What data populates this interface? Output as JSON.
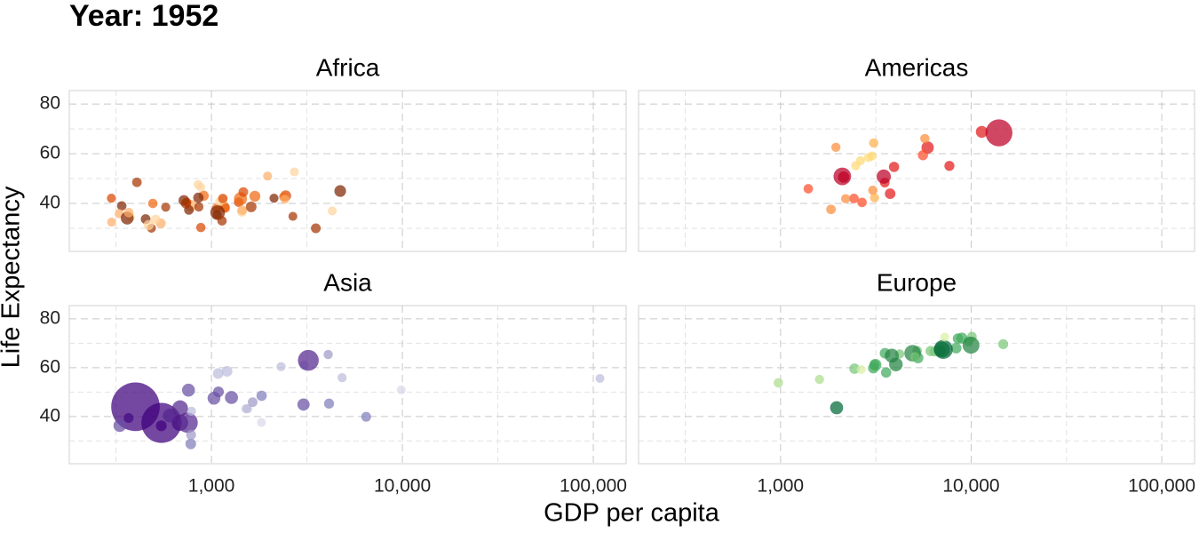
{
  "title": "Year: 1952",
  "x_label": "GDP per capita",
  "y_label": "Life Expectancy",
  "chart_data": [
    {
      "type": "scatter",
      "title": "Africa",
      "log_x": true,
      "grid": true,
      "xlim": [
        180,
        148600
      ],
      "ylim": [
        20.7,
        85.4
      ],
      "xticks": [
        1000,
        10000,
        100000
      ],
      "x_minor_grid": [
        316.2,
        3162,
        31623
      ],
      "yticks": [
        40,
        60,
        80
      ],
      "y_minor_grid": [
        30,
        50,
        70
      ],
      "x": [
        2449,
        3521,
        1063,
        851,
        543,
        339,
        1173,
        1071,
        1179,
        1103,
        781,
        2126,
        1389,
        2670,
        1419,
        376,
        329,
        362,
        4293,
        485,
        911,
        510,
        300,
        854,
        299,
        576,
        2388,
        1443,
        369,
        452,
        743,
        1968,
        1688,
        469,
        2424,
        762,
        1077,
        2719,
        493,
        880,
        1450,
        880,
        1136,
        4725,
        1615,
        1148,
        717,
        859,
        1469,
        735,
        1147,
        407
      ],
      "values": [
        43.1,
        30.0,
        38.2,
        47.6,
        32.0,
        39.0,
        38.5,
        35.5,
        38.1,
        40.7,
        39.1,
        42.1,
        40.5,
        34.8,
        41.9,
        34.5,
        35.9,
        34.1,
        37.0,
        30.0,
        43.1,
        33.6,
        32.5,
        42.3,
        42.1,
        38.5,
        42.7,
        36.7,
        36.3,
        33.7,
        40.5,
        51.0,
        42.9,
        31.3,
        41.7,
        37.4,
        36.3,
        52.7,
        40.0,
        46.5,
        37.3,
        30.3,
        33.0,
        45.0,
        38.6,
        41.4,
        41.2,
        38.6,
        44.6,
        40.0,
        42.0,
        48.5
      ],
      "sizes": [
        9.3,
        4.2,
        1.7,
        0.44,
        4.5,
        2.4,
        5.0,
        1.3,
        2.7,
        0.15,
        14.1,
        0.85,
        2.98,
        0.06,
        22.2,
        0.22,
        1.4,
        20.9,
        0.42,
        0.28,
        5.6,
        2.7,
        0.58,
        6.5,
        0.75,
        0.86,
        1.0,
        4.8,
        2.9,
        3.8,
        1.0,
        0.52,
        9.9,
        6.4,
        0.49,
        3.4,
        33.1,
        0.26,
        2.5,
        0.06,
        2.8,
        2.1,
        2.5,
        14.3,
        8.5,
        0.29,
        8.3,
        1.2,
        3.6,
        5.8,
        2.7,
        3.1
      ],
      "colors": [
        "#d94801",
        "#a63603",
        "#f16913",
        "#fdd49e",
        "#fdae6b",
        "#7f2704",
        "#d94801",
        "#a63603",
        "#f16913",
        "#fdd49e",
        "#fdae6b",
        "#7f2704",
        "#d94801",
        "#a63603",
        "#f16913",
        "#fdd49e",
        "#fdae6b",
        "#7f2704",
        "#fdd49e",
        "#a63603",
        "#f16913",
        "#fdd49e",
        "#fdae6b",
        "#7f2704",
        "#d94801",
        "#a63603",
        "#f16913",
        "#fdd49e",
        "#fdae6b",
        "#7f2704",
        "#d94801",
        "#fdae6b",
        "#f16913",
        "#fdd49e",
        "#fdae6b",
        "#7f2704",
        "#7f2704",
        "#fdd49e",
        "#f16913",
        "#fdd49e",
        "#fdae6b",
        "#d94801",
        "#a63603",
        "#7f2704",
        "#a63603",
        "#fdd49e",
        "#7f2704",
        "#a63603",
        "#d94801",
        "#a63603",
        "#d94801",
        "#a63603"
      ]
    },
    {
      "type": "scatter",
      "title": "Americas",
      "log_x": true,
      "grid": true,
      "xlim": [
        180,
        148600
      ],
      "ylim": [
        20.7,
        85.4
      ],
      "xticks": [
        1000,
        10000,
        100000
      ],
      "x_minor_grid": [
        316.2,
        3162,
        31623
      ],
      "yticks": [
        40,
        60,
        80
      ],
      "y_minor_grid": [
        30,
        50,
        70
      ],
      "x": [
        5911,
        2677,
        2109,
        11367,
        3940,
        2144,
        2627,
        5587,
        1398,
        3522,
        3048,
        2428,
        1840,
        2195,
        2899,
        3478,
        3112,
        2480,
        1952,
        3759,
        3082,
        3023,
        13990,
        5717,
        7690
      ],
      "values": [
        62.5,
        40.4,
        50.9,
        68.8,
        54.7,
        50.6,
        57.2,
        59.4,
        45.9,
        48.4,
        45.3,
        42.0,
        37.6,
        41.9,
        58.5,
        50.8,
        42.3,
        55.2,
        62.6,
        43.9,
        64.3,
        59.1,
        68.4,
        66.1,
        55.1
      ],
      "sizes": [
        17.9,
        2.9,
        56.6,
        14.8,
        6.4,
        12.4,
        0.93,
        6.0,
        2.5,
        3.5,
        2.0,
        3.1,
        3.2,
        1.5,
        1.4,
        30.1,
        1.2,
        0.94,
        1.6,
        8.0,
        2.2,
        0.66,
        157.6,
        2.25,
        5.4
      ],
      "colors": [
        "#e31a1c",
        "#fc4e2a",
        "#bd0026",
        "#e31a1c",
        "#e31a1c",
        "#bd0026",
        "#fed976",
        "#fc4e2a",
        "#fc4e2a",
        "#e31a1c",
        "#fd8d3c",
        "#fc4e2a",
        "#fd8d3c",
        "#fd8d3c",
        "#fed976",
        "#bd0026",
        "#feb24c",
        "#fed976",
        "#fd8d3c",
        "#e31a1c",
        "#feb24c",
        "#fed976",
        "#bd0026",
        "#fd8d3c",
        "#e31a1c"
      ]
    },
    {
      "type": "scatter",
      "title": "Asia",
      "log_x": true,
      "grid": true,
      "xlim": [
        180,
        148600
      ],
      "ylim": [
        20.7,
        85.4
      ],
      "xticks": [
        {
          "value": 1000,
          "label": "1,000"
        },
        {
          "value": 10000,
          "label": "10,000"
        },
        {
          "value": 100000,
          "label": "100,000"
        }
      ],
      "x_minor_grid": [
        316.2,
        3162,
        31623
      ],
      "yticks": [
        40,
        60,
        80
      ],
      "y_minor_grid": [
        30,
        50,
        70
      ],
      "x": [
        779,
        9867,
        684,
        368,
        400,
        3054,
        547,
        750,
        3035,
        4129,
        4087,
        3217,
        1547,
        1088,
        1031,
        108382,
        4835,
        1831,
        786,
        331,
        546,
        1828,
        685,
        1273,
        6460,
        2315,
        1084,
        1644,
        1207,
        758,
        605,
        1516,
        782
      ],
      "values": [
        28.8,
        50.9,
        37.5,
        39.4,
        44.0,
        61.0,
        37.4,
        37.5,
        44.9,
        45.3,
        65.4,
        63.0,
        43.2,
        50.1,
        47.5,
        55.6,
        55.9,
        48.5,
        42.2,
        36.3,
        36.2,
        37.6,
        43.4,
        47.8,
        39.9,
        60.4,
        57.6,
        45.9,
        58.5,
        50.8,
        40.4,
        43.2,
        32.5
      ],
      "sizes": [
        8.4,
        0.12,
        46.9,
        4.7,
        556,
        2.1,
        372,
        82,
        17.3,
        5.4,
        1.6,
        86.5,
        0.6,
        8.9,
        20.9,
        0.16,
        1.4,
        6.7,
        0.8,
        20.1,
        9.2,
        0.5,
        41.3,
        22.4,
        4.0,
        1.1,
        7.98,
        3.7,
        8.6,
        21.3,
        26.2,
        1.0,
        4.96
      ],
      "colors": [
        "#807dba",
        "#dadaeb",
        "#54278f",
        "#54278f",
        "#3f007d",
        "#bcbddc",
        "#3f007d",
        "#54278f",
        "#6a51a3",
        "#807dba",
        "#9e9ac8",
        "#54278f",
        "#bcbddc",
        "#6a51a3",
        "#6a51a3",
        "#bcbddc",
        "#bcbddc",
        "#807dba",
        "#bcbddc",
        "#6a51a3",
        "#3f007d",
        "#dadaeb",
        "#54278f",
        "#6a51a3",
        "#807dba",
        "#bcbddc",
        "#bcbddc",
        "#9e9ac8",
        "#bcbddc",
        "#6a51a3",
        "#54278f",
        "#bcbddc",
        "#9e9ac8"
      ]
    },
    {
      "type": "scatter",
      "title": "Europe",
      "log_x": true,
      "grid": true,
      "xlim": [
        180,
        148600
      ],
      "ylim": [
        20.7,
        85.4
      ],
      "xticks": [
        {
          "value": 1000,
          "label": "1,000"
        },
        {
          "value": 10000,
          "label": "10,000"
        },
        {
          "value": 100000,
          "label": "100,000"
        }
      ],
      "x_minor_grid": [
        316.2,
        3162,
        31623
      ],
      "yticks": [
        40,
        60,
        80
      ],
      "y_minor_grid": [
        30,
        50,
        70
      ],
      "x": [
        1601,
        6137,
        8343,
        974,
        2444,
        3119,
        6876,
        9692,
        6425,
        7030,
        7144,
        3531,
        5264,
        7268,
        5211,
        4931,
        2648,
        8942,
        10095,
        4029,
        3068,
        3145,
        3581,
        5074,
        4215,
        3834,
        8528,
        14734,
        1969,
        9980
      ],
      "values": [
        55.2,
        66.8,
        68.0,
        53.8,
        59.6,
        61.2,
        66.9,
        70.8,
        66.6,
        67.4,
        67.5,
        65.9,
        64.0,
        72.5,
        66.9,
        65.9,
        59.2,
        72.1,
        72.7,
        61.3,
        59.8,
        61.1,
        58.0,
        64.4,
        65.6,
        64.9,
        71.9,
        69.6,
        43.6,
        69.2
      ],
      "sizes": [
        1.3,
        6.9,
        8.7,
        2.8,
        7.3,
        3.9,
        9.1,
        4.3,
        4.1,
        42.5,
        69.1,
        7.7,
        9.5,
        0.15,
        2.95,
        47.7,
        0.41,
        10.4,
        3.3,
        25.7,
        8.5,
        16.6,
        6.9,
        3.6,
        1.5,
        28.5,
        7.1,
        4.8,
        22.2,
        50.4
      ],
      "colors": [
        "#addd8e",
        "#78c679",
        "#41ab5d",
        "#addd8e",
        "#78c679",
        "#41ab5d",
        "#41ab5d",
        "#78c679",
        "#78c679",
        "#238443",
        "#006837",
        "#41ab5d",
        "#41ab5d",
        "#d9f0a3",
        "#78c679",
        "#238443",
        "#d9f0a3",
        "#41ab5d",
        "#78c679",
        "#238443",
        "#41ab5d",
        "#41ab5d",
        "#41ab5d",
        "#78c679",
        "#78c679",
        "#238443",
        "#41ab5d",
        "#78c679",
        "#006837",
        "#238443"
      ]
    }
  ]
}
